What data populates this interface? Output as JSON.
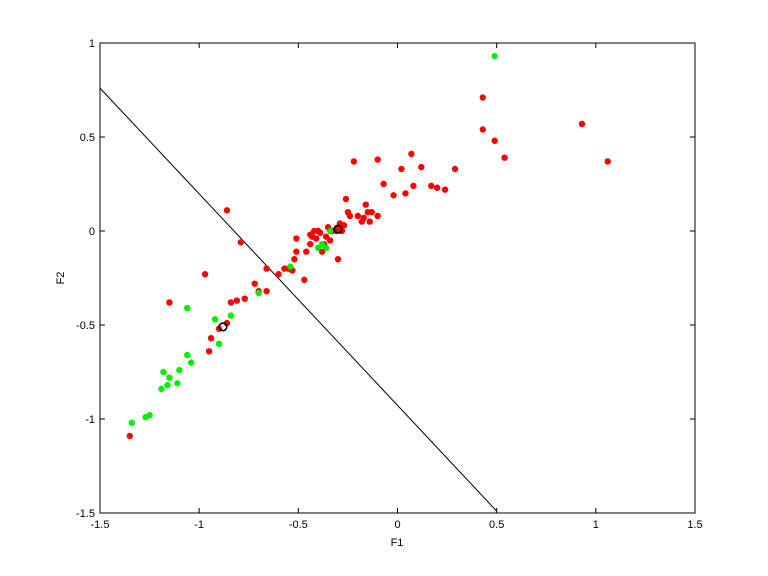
{
  "chart_data": {
    "type": "scatter",
    "title": "",
    "xlabel": "F1",
    "ylabel": "F2",
    "xlim": [
      -1.5,
      1.5
    ],
    "ylim": [
      -1.5,
      1
    ],
    "xticks": [
      -1.5,
      -1,
      -0.5,
      0,
      0.5,
      1,
      1.5
    ],
    "yticks": [
      -1.5,
      -1,
      -0.5,
      0,
      0.5,
      1
    ],
    "xtick_labels": [
      "-1.5",
      "-1",
      "-0.5",
      "0",
      "0.5",
      "1",
      "1.5"
    ],
    "ytick_labels": [
      "-1.5",
      "-1",
      "-0.5",
      "0",
      "0.5",
      "1"
    ],
    "grid": false,
    "boundary_line": {
      "x": [
        -1.5,
        0.5
      ],
      "y": [
        0.76,
        -1.49
      ],
      "color": "#000000"
    },
    "series": [
      {
        "color": "#ff0000",
        "points": [
          [
            -1.35,
            -1.09
          ],
          [
            -1.15,
            -0.38
          ],
          [
            -0.97,
            -0.23
          ],
          [
            -0.95,
            -0.64
          ],
          [
            -0.94,
            -0.57
          ],
          [
            -0.9,
            -0.52
          ],
          [
            -0.86,
            -0.49
          ],
          [
            -0.86,
            0.11
          ],
          [
            -0.84,
            -0.38
          ],
          [
            -0.81,
            -0.37
          ],
          [
            -0.79,
            -0.06
          ],
          [
            -0.77,
            -0.36
          ],
          [
            -0.72,
            -0.28
          ],
          [
            -0.7,
            -0.32
          ],
          [
            -0.66,
            -0.32
          ],
          [
            -0.66,
            -0.2
          ],
          [
            -0.6,
            -0.23
          ],
          [
            -0.57,
            -0.2
          ],
          [
            -0.55,
            -0.2
          ],
          [
            -0.53,
            -0.21
          ],
          [
            -0.52,
            -0.15
          ],
          [
            -0.51,
            -0.11
          ],
          [
            -0.51,
            -0.04
          ],
          [
            -0.47,
            -0.26
          ],
          [
            -0.46,
            -0.11
          ],
          [
            -0.44,
            -0.07
          ],
          [
            -0.44,
            -0.02
          ],
          [
            -0.43,
            -0.03
          ],
          [
            -0.42,
            0.0
          ],
          [
            -0.41,
            -0.04
          ],
          [
            -0.4,
            0.0
          ],
          [
            -0.39,
            -0.01
          ],
          [
            -0.38,
            -0.11
          ],
          [
            -0.37,
            -0.07
          ],
          [
            -0.36,
            -0.03
          ],
          [
            -0.35,
            0.02
          ],
          [
            -0.34,
            -0.05
          ],
          [
            -0.33,
            0.0
          ],
          [
            -0.31,
            0.0
          ],
          [
            -0.3,
            -0.15
          ],
          [
            -0.3,
            0.01
          ],
          [
            -0.29,
            0.04
          ],
          [
            -0.28,
            0.0
          ],
          [
            -0.27,
            0.03
          ],
          [
            -0.26,
            0.17
          ],
          [
            -0.25,
            0.1
          ],
          [
            -0.24,
            0.08
          ],
          [
            -0.22,
            0.37
          ],
          [
            -0.2,
            0.08
          ],
          [
            -0.18,
            0.05
          ],
          [
            -0.17,
            0.07
          ],
          [
            -0.16,
            0.14
          ],
          [
            -0.15,
            0.1
          ],
          [
            -0.14,
            0.05
          ],
          [
            -0.13,
            0.1
          ],
          [
            -0.1,
            0.38
          ],
          [
            -0.1,
            0.08
          ],
          [
            -0.07,
            0.25
          ],
          [
            -0.02,
            0.19
          ],
          [
            0.02,
            0.33
          ],
          [
            0.04,
            0.2
          ],
          [
            0.07,
            0.41
          ],
          [
            0.08,
            0.24
          ],
          [
            0.12,
            0.34
          ],
          [
            0.17,
            0.24
          ],
          [
            0.2,
            0.23
          ],
          [
            0.24,
            0.22
          ],
          [
            0.29,
            0.33
          ],
          [
            0.43,
            0.54
          ],
          [
            0.43,
            0.71
          ],
          [
            0.49,
            0.48
          ],
          [
            0.54,
            0.39
          ],
          [
            0.93,
            0.57
          ],
          [
            1.06,
            0.37
          ]
        ]
      },
      {
        "color": "#00ee00",
        "points": [
          [
            -1.34,
            -1.02
          ],
          [
            -1.27,
            -0.99
          ],
          [
            -1.25,
            -0.98
          ],
          [
            -1.19,
            -0.84
          ],
          [
            -1.18,
            -0.75
          ],
          [
            -1.16,
            -0.82
          ],
          [
            -1.15,
            -0.78
          ],
          [
            -1.11,
            -0.81
          ],
          [
            -1.1,
            -0.74
          ],
          [
            -1.06,
            -0.66
          ],
          [
            -1.06,
            -0.41
          ],
          [
            -1.04,
            -0.7
          ],
          [
            -0.92,
            -0.47
          ],
          [
            -0.9,
            -0.6
          ],
          [
            -0.84,
            -0.45
          ],
          [
            -0.7,
            -0.33
          ],
          [
            -0.54,
            -0.19
          ],
          [
            -0.4,
            -0.09
          ],
          [
            -0.38,
            -0.07
          ],
          [
            -0.36,
            -0.09
          ],
          [
            -0.34,
            0.0
          ],
          [
            0.49,
            0.93
          ]
        ]
      }
    ],
    "highlighted_points": [
      [
        -0.88,
        -0.51
      ],
      [
        -0.3,
        0.01
      ]
    ]
  }
}
